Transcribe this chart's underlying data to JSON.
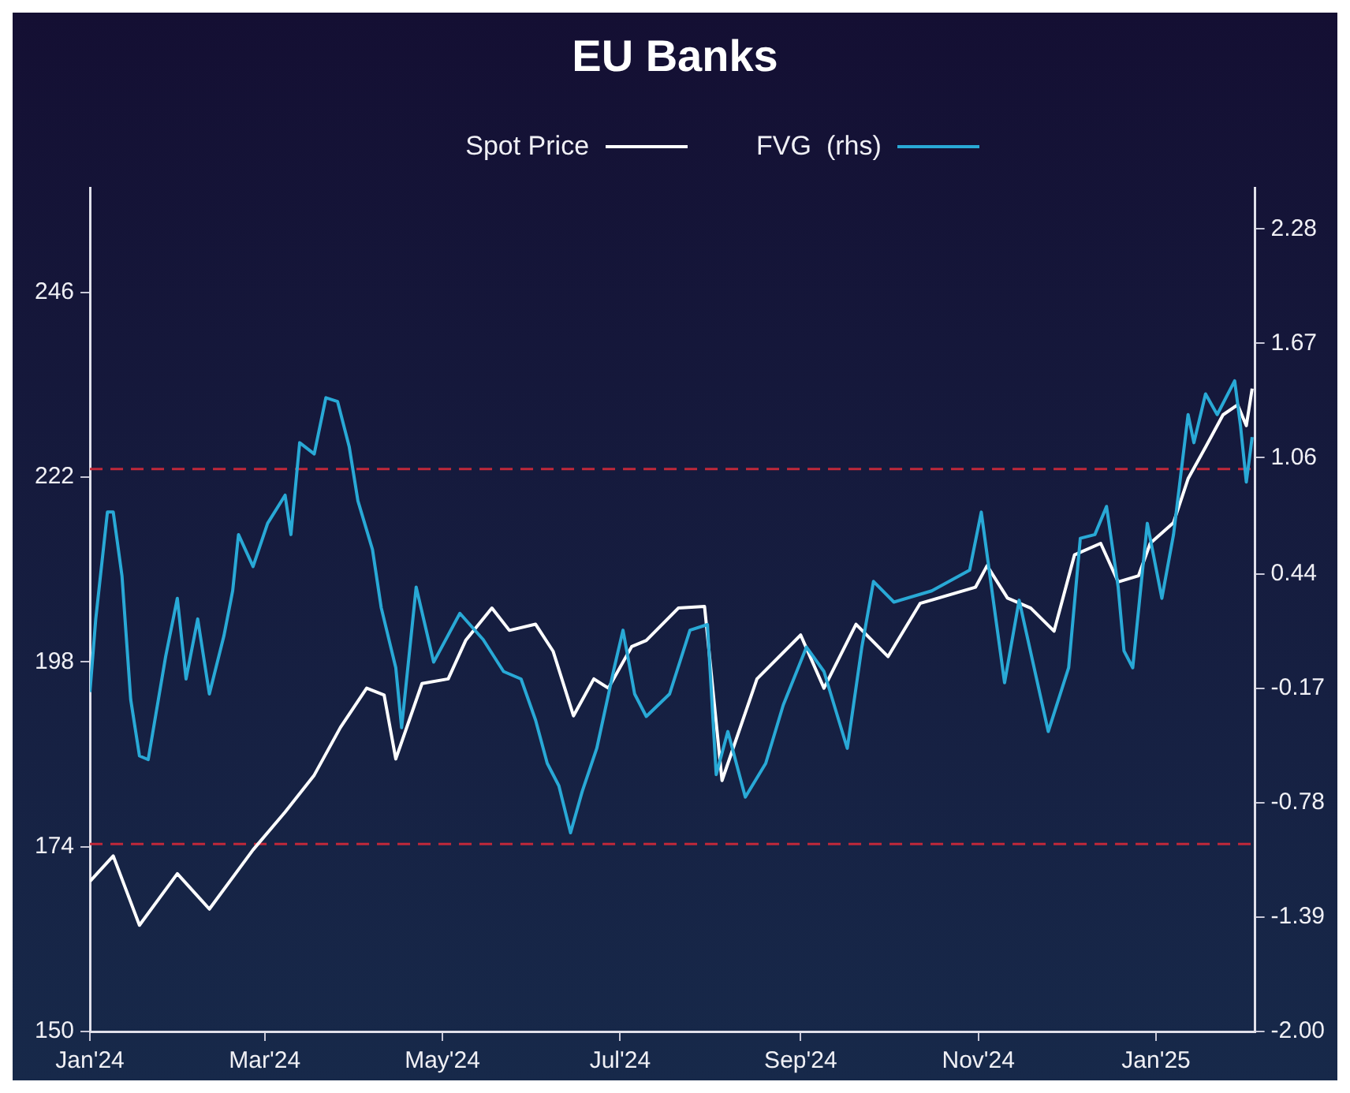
{
  "chart_data": {
    "type": "line",
    "title": "EU Banks",
    "xlim": [
      "2024-01-01",
      "2025-02-04"
    ],
    "xticks": [
      {
        "value": "2024-01-01",
        "label": "Jan'24"
      },
      {
        "value": "2024-03-01",
        "label": "Mar'24"
      },
      {
        "value": "2024-05-01",
        "label": "May'24"
      },
      {
        "value": "2024-07-01",
        "label": "Jul'24"
      },
      {
        "value": "2024-09-01",
        "label": "Sep'24"
      },
      {
        "value": "2024-11-01",
        "label": "Nov'24"
      },
      {
        "value": "2025-01-01",
        "label": "Jan'25"
      }
    ],
    "ylim": [
      150,
      259.6
    ],
    "yticks": [
      150,
      174,
      198,
      222,
      246
    ],
    "y2lim": [
      -2.0,
      2.5
    ],
    "y2ticks": [
      {
        "value": -2.0,
        "label": "-2.00"
      },
      -1.39,
      -0.78,
      -0.17,
      0.44,
      1.06,
      1.67,
      2.28
    ],
    "grid": false,
    "legend": "top",
    "marker": "none",
    "line_style": "solid",
    "ref_lines": [
      {
        "axis": "y2",
        "value": 1.0,
        "color": "#c0283a",
        "line_style": "dashed"
      },
      {
        "axis": "y2",
        "value": -1.0,
        "color": "#c0283a",
        "line_style": "dashed"
      }
    ],
    "series": [
      {
        "name": "FVG  (rhs)",
        "color": "#29a9d6",
        "axis": "y2",
        "x": [
          "2024-01-01",
          "2024-01-03",
          "2024-01-07",
          "2024-01-09",
          "2024-01-12",
          "2024-01-15",
          "2024-01-18",
          "2024-01-21",
          "2024-01-27",
          "2024-01-31",
          "2024-02-03",
          "2024-02-07",
          "2024-02-11",
          "2024-02-16",
          "2024-02-19",
          "2024-02-21",
          "2024-02-26",
          "2024-03-02",
          "2024-03-08",
          "2024-03-10",
          "2024-03-13",
          "2024-03-18",
          "2024-03-22",
          "2024-03-26",
          "2024-03-30",
          "2024-04-02",
          "2024-04-07",
          "2024-04-10",
          "2024-04-15",
          "2024-04-17",
          "2024-04-22",
          "2024-04-28",
          "2024-05-07",
          "2024-05-15",
          "2024-05-22",
          "2024-05-28",
          "2024-06-02",
          "2024-06-06",
          "2024-06-10",
          "2024-06-14",
          "2024-06-18",
          "2024-06-23",
          "2024-06-29",
          "2024-07-02",
          "2024-07-06",
          "2024-07-10",
          "2024-07-18",
          "2024-07-25",
          "2024-07-31",
          "2024-08-03",
          "2024-08-07",
          "2024-08-13",
          "2024-08-20",
          "2024-08-26",
          "2024-09-03",
          "2024-09-09",
          "2024-09-17",
          "2024-09-22",
          "2024-09-26",
          "2024-10-03",
          "2024-10-16",
          "2024-10-29",
          "2024-11-02",
          "2024-11-07",
          "2024-11-10",
          "2024-11-15",
          "2024-11-25",
          "2024-12-02",
          "2024-12-06",
          "2024-12-11",
          "2024-12-15",
          "2024-12-19",
          "2024-12-21",
          "2024-12-24",
          "2024-12-29",
          "2025-01-03",
          "2025-01-07",
          "2025-01-12",
          "2025-01-14",
          "2025-01-18",
          "2025-01-22",
          "2025-01-28",
          "2025-01-30",
          "2025-02-01",
          "2025-02-03"
        ],
        "values": [
          -0.19,
          0.2,
          0.77,
          0.77,
          0.43,
          -0.23,
          -0.53,
          -0.55,
          0.0,
          0.31,
          -0.12,
          0.2,
          -0.2,
          0.11,
          0.35,
          0.65,
          0.48,
          0.71,
          0.86,
          0.65,
          1.14,
          1.08,
          1.38,
          1.36,
          1.12,
          0.83,
          0.57,
          0.26,
          -0.06,
          -0.38,
          0.37,
          -0.03,
          0.23,
          0.09,
          -0.08,
          -0.12,
          -0.34,
          -0.57,
          -0.69,
          -0.94,
          -0.72,
          -0.49,
          -0.06,
          0.14,
          -0.2,
          -0.32,
          -0.2,
          0.14,
          0.17,
          -0.63,
          -0.4,
          -0.75,
          -0.57,
          -0.26,
          0.05,
          -0.08,
          -0.49,
          0.05,
          0.4,
          0.29,
          0.35,
          0.46,
          0.77,
          0.2,
          -0.14,
          0.3,
          -0.4,
          -0.06,
          0.63,
          0.65,
          0.8,
          0.37,
          0.03,
          -0.06,
          0.71,
          0.31,
          0.65,
          1.29,
          1.14,
          1.4,
          1.29,
          1.47,
          1.23,
          0.93,
          1.17
        ]
      },
      {
        "name": "Spot Price",
        "color": "#ffffff",
        "x": [
          "2024-01-01",
          "2024-01-09",
          "2024-01-18",
          "2024-01-31",
          "2024-02-11",
          "2024-02-26",
          "2024-03-08",
          "2024-03-18",
          "2024-03-27",
          "2024-04-05",
          "2024-04-11",
          "2024-04-15",
          "2024-04-24",
          "2024-05-03",
          "2024-05-09",
          "2024-05-18",
          "2024-05-24",
          "2024-06-02",
          "2024-06-08",
          "2024-06-15",
          "2024-06-22",
          "2024-06-27",
          "2024-07-05",
          "2024-07-10",
          "2024-07-21",
          "2024-07-30",
          "2024-08-05",
          "2024-08-17",
          "2024-09-01",
          "2024-09-09",
          "2024-09-20",
          "2024-10-01",
          "2024-10-12",
          "2024-10-31",
          "2024-11-04",
          "2024-11-11",
          "2024-11-19",
          "2024-11-27",
          "2024-12-04",
          "2024-12-13",
          "2024-12-19",
          "2024-12-26",
          "2024-12-30",
          "2025-01-07",
          "2025-01-12",
          "2025-01-18",
          "2025-01-24",
          "2025-01-29",
          "2025-02-01",
          "2025-02-03"
        ],
        "values": [
          169.5,
          172.8,
          163.8,
          170.5,
          165.9,
          173.6,
          178.5,
          183.3,
          189.5,
          194.6,
          193.7,
          185.4,
          195.2,
          195.8,
          200.8,
          205,
          202.1,
          202.9,
          199.4,
          191,
          195.8,
          194.6,
          200,
          200.8,
          205,
          205.2,
          182.6,
          195.8,
          201.5,
          194.6,
          202.9,
          198.7,
          205.6,
          207.7,
          210.5,
          206.3,
          205,
          202,
          211.9,
          213.4,
          208.4,
          209.2,
          213.4,
          216.1,
          221.8,
          225.9,
          230.1,
          231.4,
          228.7,
          233.5
        ]
      }
    ]
  }
}
